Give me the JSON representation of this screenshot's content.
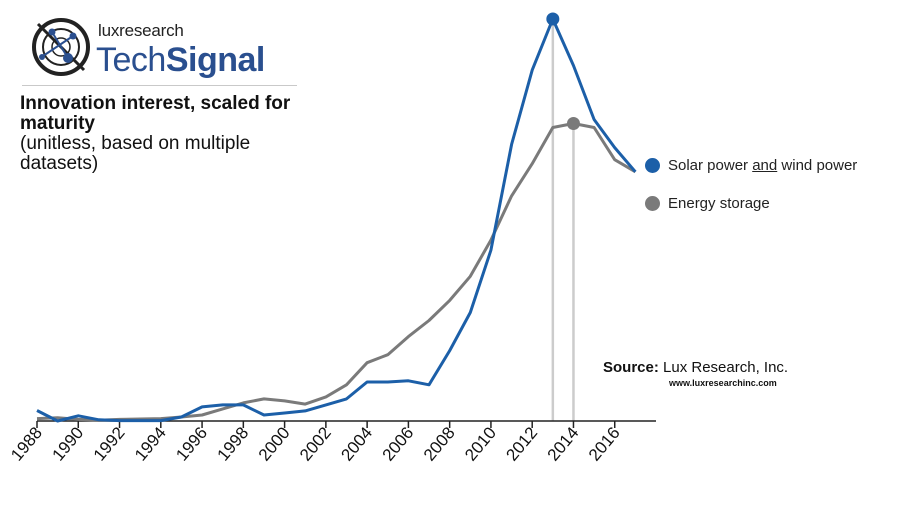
{
  "branding": {
    "company": "luxresearch",
    "product_light": "Tech",
    "product_bold": "Signal"
  },
  "heading": {
    "title": "Innovation interest, scaled for maturity",
    "subtitle": "(unitless, based on multiple datasets)"
  },
  "source": {
    "label": "Source:",
    "name": "Lux Research, Inc.",
    "url": "www.luxresearchinc.com"
  },
  "colors": {
    "solar_wind": "#1c5fa8",
    "energy_storage": "#7a7a7a",
    "peak_line": "#cccccc",
    "axis": "#222222"
  },
  "chart_data": {
    "type": "line",
    "title": "Innovation interest, scaled for maturity",
    "ylabel": "(unitless, based on multiple datasets)",
    "xlabel": "",
    "x": [
      1988,
      1989,
      1990,
      1991,
      1992,
      1993,
      1994,
      1995,
      1996,
      1997,
      1998,
      1999,
      2000,
      2001,
      2002,
      2003,
      2004,
      2005,
      2006,
      2007,
      2008,
      2009,
      2010,
      2011,
      2012,
      2013,
      2014,
      2015,
      2016,
      2017
    ],
    "xlim": [
      1988,
      2018
    ],
    "ylim": [
      0,
      100
    ],
    "x_ticks": [
      1988,
      1990,
      1992,
      1994,
      1996,
      1998,
      2000,
      2002,
      2004,
      2006,
      2008,
      2010,
      2012,
      2014,
      2016
    ],
    "grid": false,
    "legend_position": "right",
    "series": [
      {
        "name": "Solar power and wind power",
        "name_plain": "Solar power",
        "name_underlined": "and",
        "name_rest": "wind power",
        "color_key": "solar_wind",
        "values": [
          2.6,
          0,
          1.3,
          0.3,
          0.1,
          0.1,
          0.1,
          1.0,
          3.5,
          4.0,
          4.0,
          1.5,
          2.0,
          2.5,
          4.0,
          5.5,
          9.7,
          9.7,
          10.0,
          9.0,
          17.5,
          27.0,
          42.5,
          68.8,
          87.3,
          100.0,
          88.4,
          75.0,
          68.0,
          62.0
        ],
        "peak": {
          "x": 2013,
          "y": 100.0
        }
      },
      {
        "name": "Energy storage",
        "color_key": "energy_storage",
        "values": [
          0.6,
          0.8,
          0.4,
          0.2,
          0.4,
          0.5,
          0.6,
          1.0,
          1.5,
          3.0,
          4.5,
          5.5,
          5.0,
          4.2,
          6.0,
          9.0,
          14.5,
          16.5,
          21.0,
          25.0,
          30.0,
          36.0,
          45.0,
          56.0,
          64.0,
          73.0,
          74.0,
          73.0,
          65.0,
          62.0
        ],
        "peak": {
          "x": 2014,
          "y": 74.0
        }
      }
    ]
  }
}
